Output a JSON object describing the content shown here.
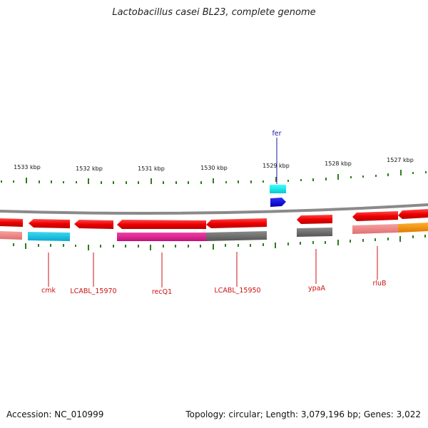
{
  "title": "Lactobacillus casei BL23, complete genome",
  "footer": {
    "accession": "Accession: NC_010999",
    "summary": "Topology: circular; Length: 3,079,196 bp; Genes: 3,022"
  },
  "colors": {
    "backbone": "#8a8a8a",
    "tick": "#2e7d1e",
    "label_red": "#cc1111",
    "label_blue": "#1a1aa0"
  },
  "scale_labels": [
    "1533 kbp",
    "1532 kbp",
    "1531 kbp",
    "1530 kbp",
    "1529 kbp",
    "1528 kbp",
    "1527 kbp"
  ],
  "gene_labels": [
    {
      "text": "cmk",
      "color": "#cc1111"
    },
    {
      "text": "LCABL_15970",
      "color": "#cc1111"
    },
    {
      "text": "recQ1",
      "color": "#cc1111"
    },
    {
      "text": "LCABL_15950",
      "color": "#cc1111"
    },
    {
      "text": "ypaA",
      "color": "#cc1111"
    },
    {
      "text": "rluB",
      "color": "#cc1111"
    },
    {
      "text": "fer",
      "color": "#1a1aa0"
    }
  ]
}
